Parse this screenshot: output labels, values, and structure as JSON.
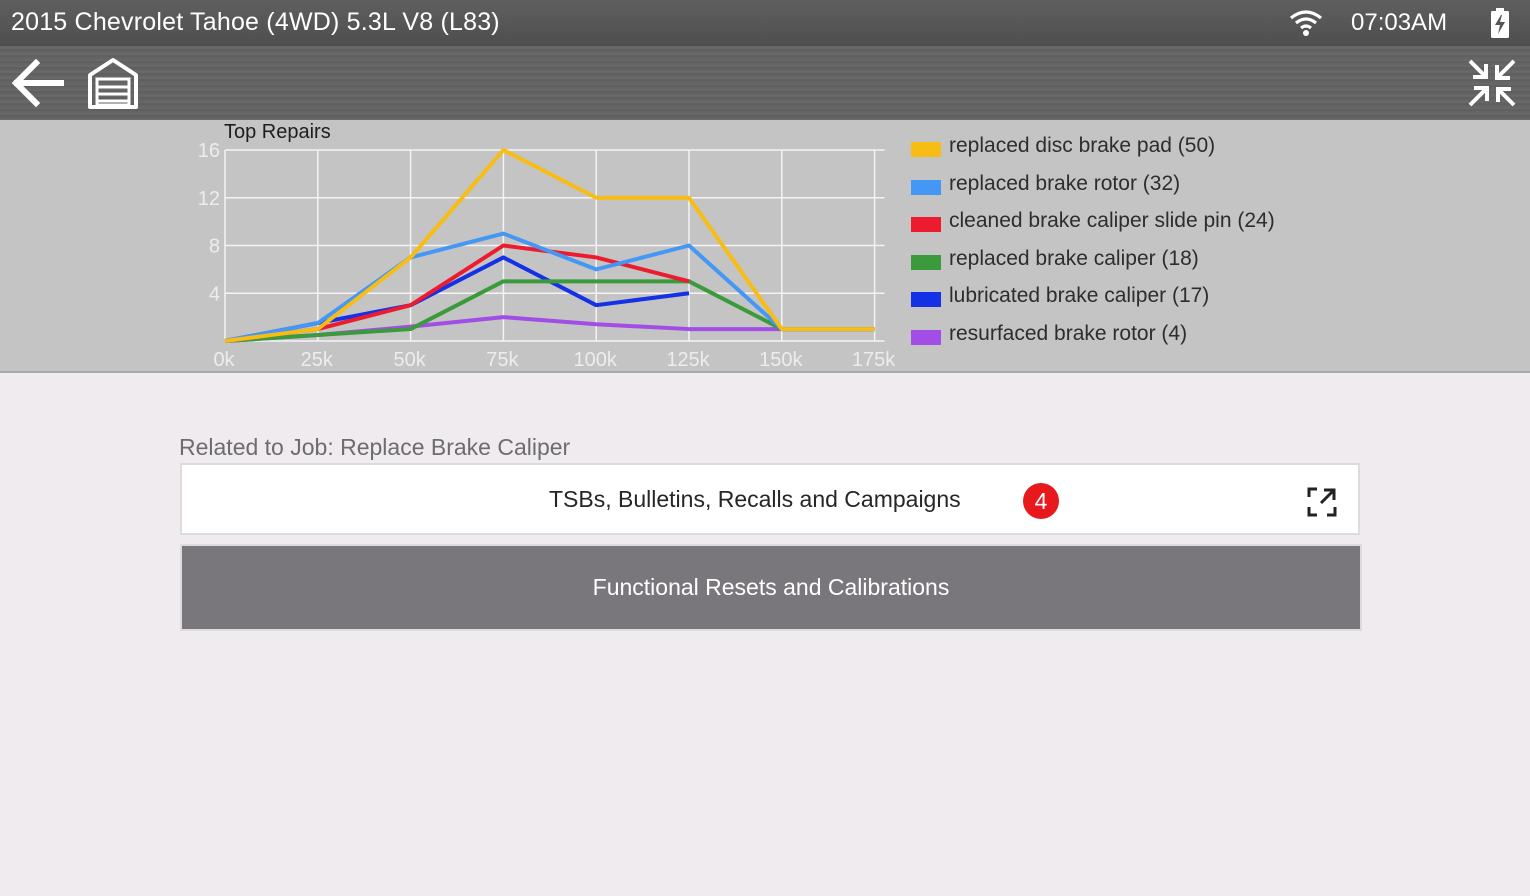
{
  "statusbar": {
    "title": "2015 Chevrolet Tahoe (4WD) 5.3L V8 (L83)",
    "time": "07:03AM",
    "icons": [
      "wifi-icon",
      "battery-charging-icon"
    ]
  },
  "toolbar": {
    "icons": [
      "back-arrow-icon",
      "garage-home-icon",
      "collapse-fullscreen-icon"
    ]
  },
  "chart_data": {
    "type": "line",
    "title": "Top Repairs",
    "x": [
      "0k",
      "25k",
      "50k",
      "75k",
      "100k",
      "125k",
      "150k",
      "175k"
    ],
    "ylim": [
      0,
      16
    ],
    "yticks": [
      "4",
      "8",
      "12",
      "16"
    ],
    "grid": true,
    "legend_position": "right",
    "series": [
      {
        "name": "replaced disc brake pad (50)",
        "color": "#f7bd14",
        "values": [
          0,
          1,
          7,
          16,
          12,
          12,
          1,
          1
        ]
      },
      {
        "name": "replaced brake rotor (32)",
        "color": "#4497f5",
        "values": [
          0,
          1.5,
          7,
          9,
          6,
          8,
          1,
          1
        ]
      },
      {
        "name": "cleaned brake caliper slide pin (24)",
        "color": "#ec1c2e",
        "values": [
          0,
          1,
          3,
          8,
          7,
          5,
          null,
          null
        ]
      },
      {
        "name": "replaced brake caliper (18)",
        "color": "#3b9a3b",
        "values": [
          0,
          0.5,
          1,
          5,
          5,
          5,
          1,
          1
        ]
      },
      {
        "name": "lubricated brake caliper (17)",
        "color": "#1431e6",
        "values": [
          0,
          1.5,
          3,
          7,
          3,
          4,
          null,
          null
        ]
      },
      {
        "name": "resurfaced brake rotor (4)",
        "color": "#a24de6",
        "values": [
          0,
          0.5,
          1.2,
          2,
          1.4,
          1,
          1,
          1
        ]
      }
    ]
  },
  "main": {
    "related_label": "Related to Job: Replace Brake Caliper",
    "tsb_button_label": "TSBs, Bulletins, Recalls and Campaigns",
    "tsb_badge_count": "4",
    "functional_button_label": "Functional Resets and Calibrations"
  }
}
